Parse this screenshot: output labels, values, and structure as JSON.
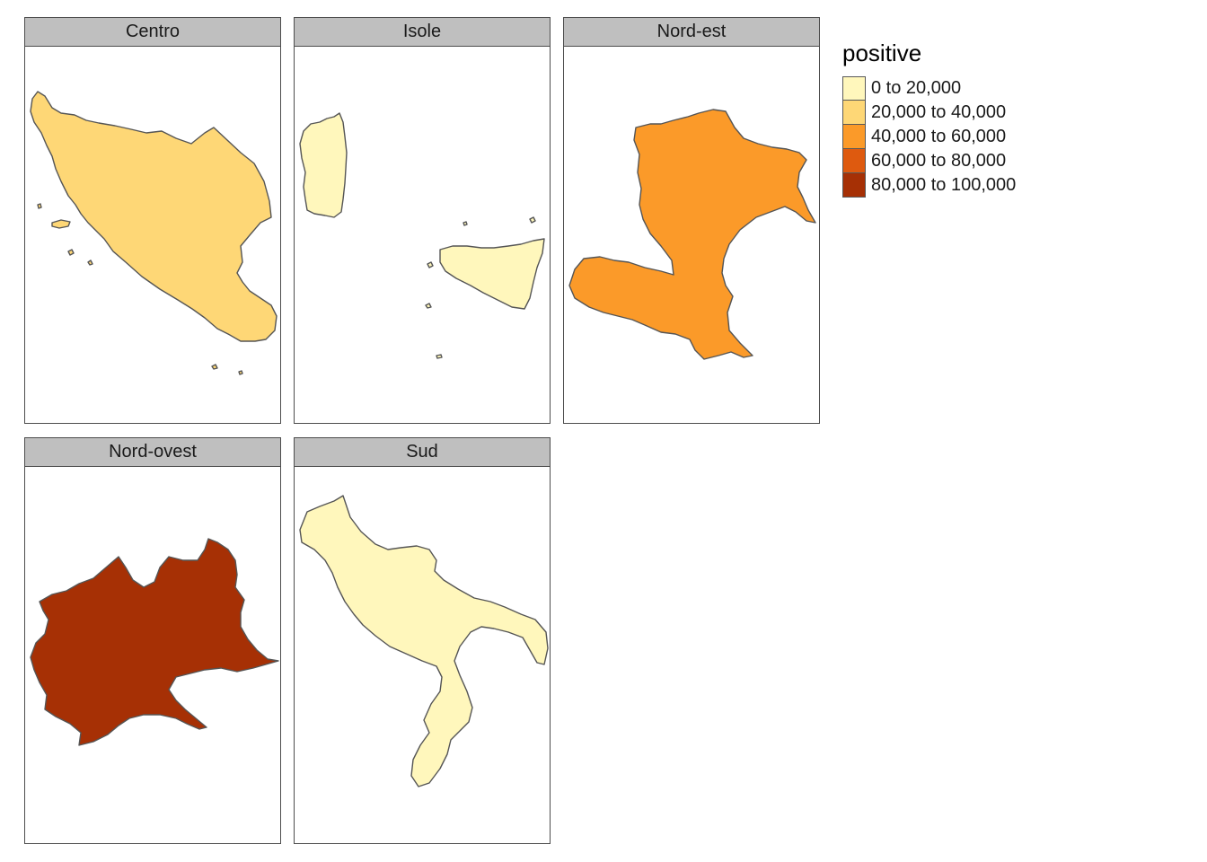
{
  "legend": {
    "title": "positive",
    "items": [
      {
        "label": "0 to 20,000",
        "color": "#FFF7BC"
      },
      {
        "label": "20,000 to 40,000",
        "color": "#FED776"
      },
      {
        "label": "40,000 to 60,000",
        "color": "#FB9A29"
      },
      {
        "label": "60,000 to 80,000",
        "color": "#DE5A0F"
      },
      {
        "label": "80,000 to 100,000",
        "color": "#A63005"
      }
    ]
  },
  "panels": [
    {
      "title": "Centro",
      "value_class": "20,000 to 40,000",
      "color": "#FED776"
    },
    {
      "title": "Isole",
      "value_class": "0 to 20,000",
      "color": "#FFF7BC"
    },
    {
      "title": "Nord-est",
      "value_class": "40,000 to 60,000",
      "color": "#FB9A29"
    },
    {
      "title": "Nord-ovest",
      "value_class": "80,000 to 100,000",
      "color": "#A63005"
    },
    {
      "title": "Sud",
      "value_class": "0 to 20,000",
      "color": "#FFF7BC"
    }
  ],
  "border_color": "#555555"
}
